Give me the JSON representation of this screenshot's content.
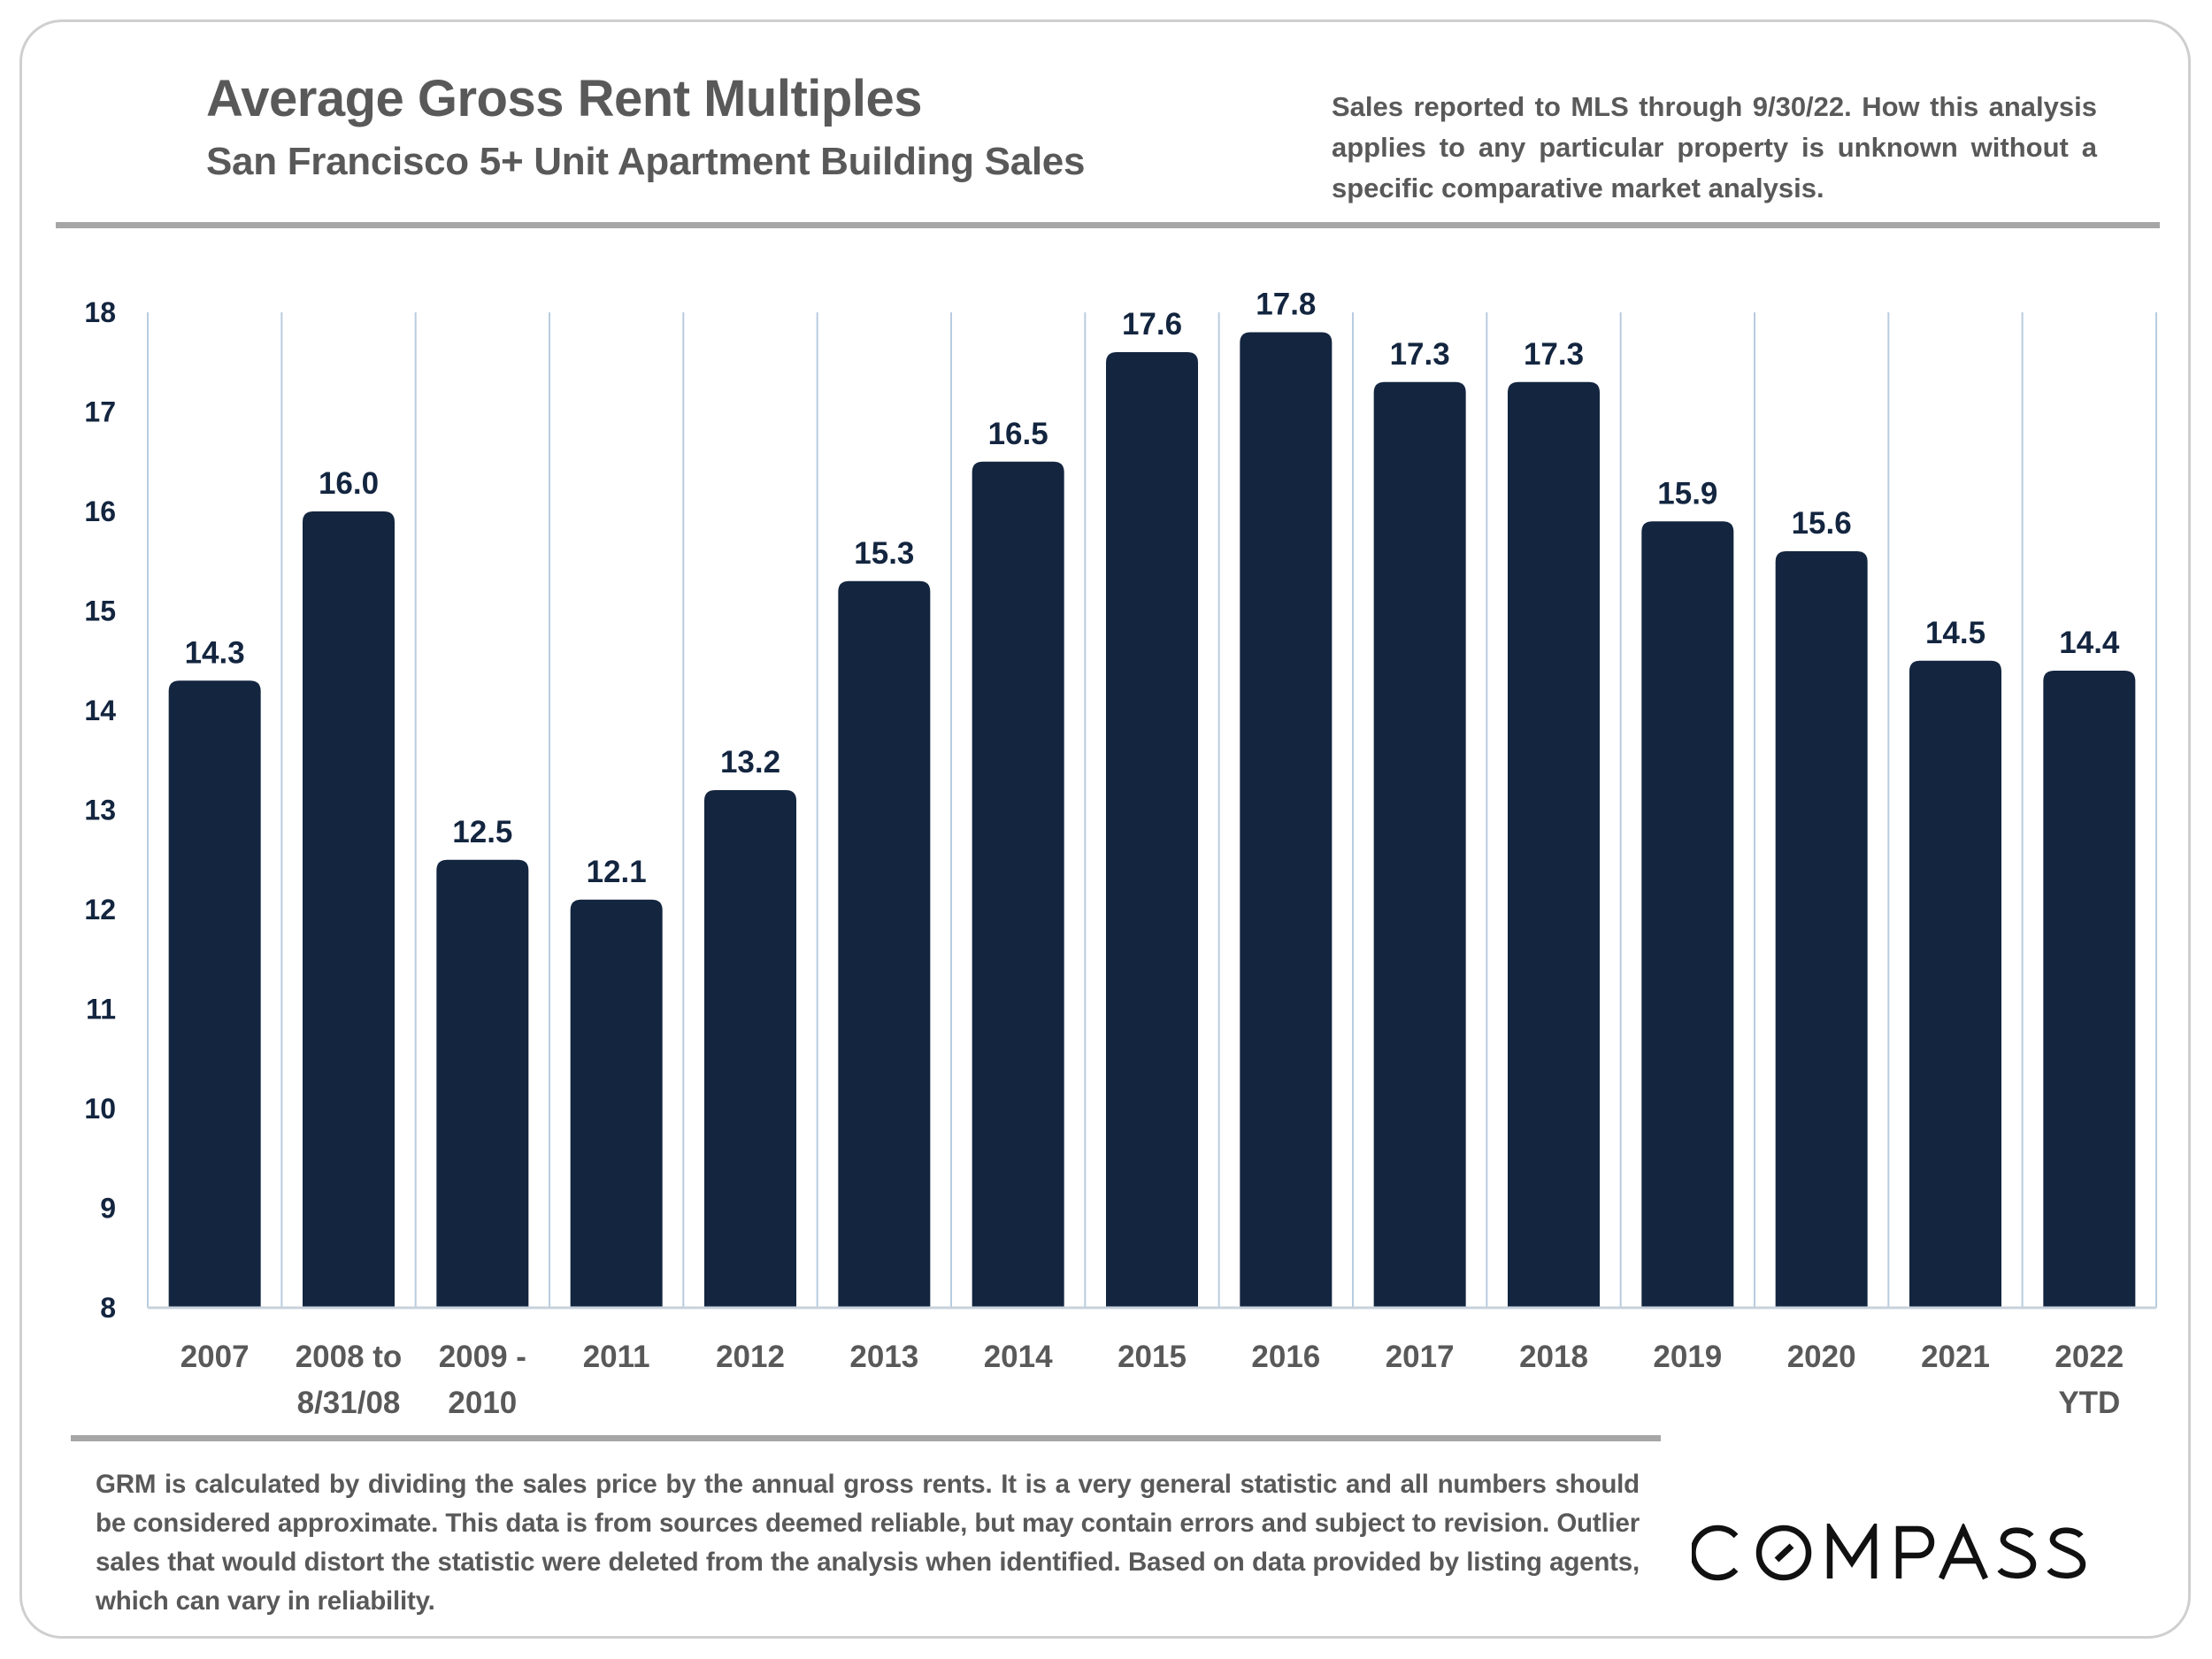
{
  "header": {
    "title": "Average Gross Rent Multiples",
    "subtitle": "San Francisco 5+ Unit Apartment Building Sales",
    "note": "Sales reported to MLS through 9/30/22. How this analysis applies to any particular property is unknown without a specific comparative market analysis."
  },
  "footer": {
    "footnote": "GRM is calculated by dividing the sales price by the annual gross rents. It is a very general statistic and all numbers should be considered approximate. This data is from sources deemed reliable, but may contain errors and subject to revision. Outlier sales that would distort the statistic were deleted from the analysis when identified. Based on data provided by listing agents, which can vary in reliability.",
    "logo_text": "COMPASS"
  },
  "colors": {
    "bar": "#13253F",
    "text_gray": "#595959",
    "grid": "#B8CCE0",
    "rule": "#A6A6A6"
  },
  "chart_data": {
    "type": "bar",
    "title": "Average Gross Rent Multiples",
    "subtitle": "San Francisco 5+ Unit Apartment Building Sales",
    "xlabel": "",
    "ylabel": "",
    "categories": [
      [
        "2007"
      ],
      [
        "2008 to",
        "8/31/08"
      ],
      [
        "2009 -",
        "2010"
      ],
      [
        "2011"
      ],
      [
        "2012"
      ],
      [
        "2013"
      ],
      [
        "2014"
      ],
      [
        "2015"
      ],
      [
        "2016"
      ],
      [
        "2017"
      ],
      [
        "2018"
      ],
      [
        "2019"
      ],
      [
        "2020"
      ],
      [
        "2021"
      ],
      [
        "2022",
        "YTD"
      ]
    ],
    "values": [
      14.3,
      16.0,
      12.5,
      12.1,
      13.2,
      15.3,
      16.5,
      17.6,
      17.8,
      17.3,
      17.3,
      15.9,
      15.6,
      14.5,
      14.4
    ],
    "value_labels": [
      "14.3",
      "16.0",
      "12.5",
      "12.1",
      "13.2",
      "15.3",
      "16.5",
      "17.6",
      "17.8",
      "17.3",
      "17.3",
      "15.9",
      "15.6",
      "14.5",
      "14.4"
    ],
    "ylim": [
      8,
      18
    ],
    "yticks": [
      8,
      9,
      10,
      11,
      12,
      13,
      14,
      15,
      16,
      17,
      18
    ],
    "grid": "vertical category separators",
    "legend": "none",
    "data_labels": "above bars"
  }
}
